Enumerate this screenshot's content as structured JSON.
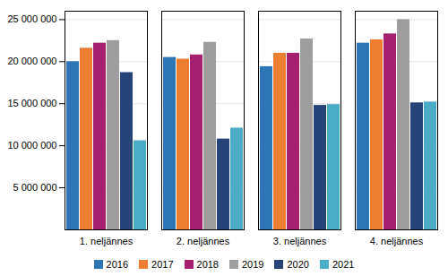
{
  "chart_data": {
    "type": "bar",
    "categories": [
      "1. neljännes",
      "2. neljännes",
      "3. neljännes",
      "4. neljännes"
    ],
    "series": [
      {
        "name": "2016",
        "color": "#2e75b6",
        "values": [
          20000000,
          20500000,
          19400000,
          22200000
        ]
      },
      {
        "name": "2017",
        "color": "#ed7d31",
        "values": [
          21600000,
          20300000,
          21000000,
          22600000
        ]
      },
      {
        "name": "2018",
        "color": "#a52170",
        "values": [
          22200000,
          20800000,
          21000000,
          23300000
        ]
      },
      {
        "name": "2019",
        "color": "#9e9e9e",
        "values": [
          22500000,
          22300000,
          22700000,
          25000000
        ]
      },
      {
        "name": "2020",
        "color": "#264478",
        "values": [
          18700000,
          10800000,
          14800000,
          15100000
        ]
      },
      {
        "name": "2021",
        "color": "#4bacc6",
        "values": [
          10600000,
          12100000,
          14900000,
          15200000
        ]
      }
    ],
    "ylim": [
      0,
      26000000
    ],
    "yticks": [
      {
        "value": 5000000,
        "label": "5 000 000"
      },
      {
        "value": 10000000,
        "label": "10 000 000"
      },
      {
        "value": 15000000,
        "label": "15 000 000"
      },
      {
        "value": 20000000,
        "label": "20 000 000"
      },
      {
        "value": 25000000,
        "label": "25 000 000"
      }
    ],
    "grid": true,
    "legend": "bottom"
  }
}
